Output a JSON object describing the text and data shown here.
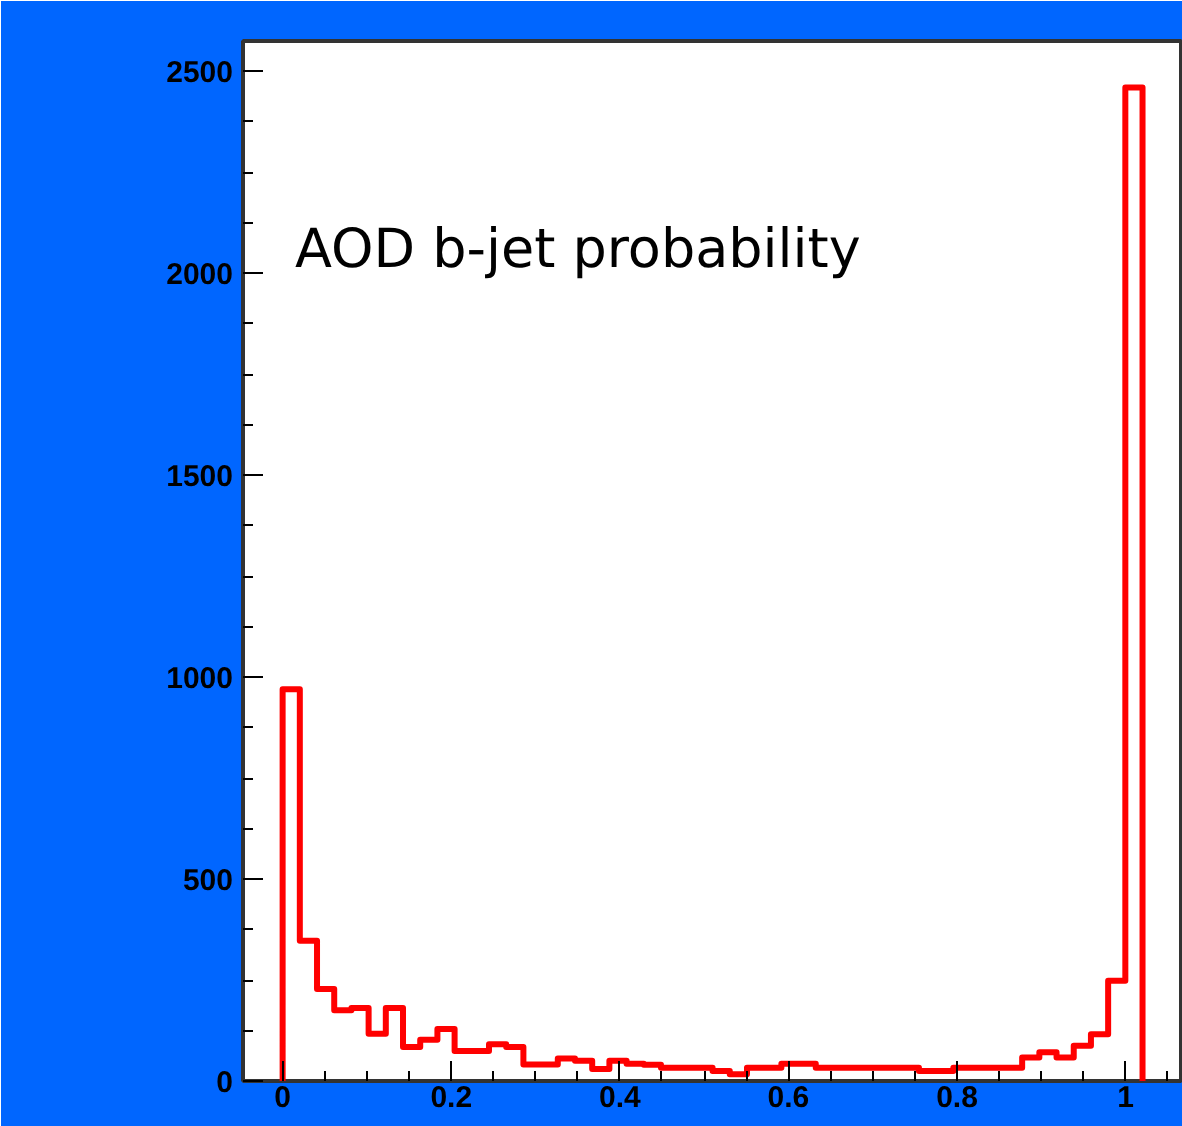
{
  "chart_data": {
    "type": "histogram",
    "title": "AOD b-jet probability",
    "bins": [
      0.0,
      0.0204,
      0.0408,
      0.0612,
      0.0816,
      0.102,
      0.1224,
      0.1428,
      0.1632,
      0.1836,
      0.204,
      0.2244,
      0.2448,
      0.2652,
      0.2856,
      0.306,
      0.3264,
      0.3468,
      0.3672,
      0.3876,
      0.408,
      0.4284,
      0.4488,
      0.4692,
      0.4896,
      0.51,
      0.5304,
      0.5508,
      0.5712,
      0.5916,
      0.612,
      0.6324,
      0.6528,
      0.6732,
      0.6936,
      0.714,
      0.7344,
      0.7548,
      0.7752,
      0.7956,
      0.816,
      0.8364,
      0.8568,
      0.8772,
      0.8976,
      0.918,
      0.9384,
      0.9588,
      0.9792,
      0.9996,
      1.02
    ],
    "values": [
      970,
      347,
      228,
      175,
      181,
      117,
      181,
      84,
      102,
      129,
      74,
      74,
      91,
      84,
      41,
      41,
      56,
      50,
      30,
      50,
      43,
      40,
      33,
      33,
      33,
      25,
      17,
      33,
      33,
      43,
      43,
      33,
      33,
      33,
      33,
      33,
      33,
      25,
      25,
      33,
      33,
      33,
      33,
      58,
      71,
      58,
      87,
      116,
      248,
      2460
    ],
    "color": "#ff0000",
    "xlim": [
      -0.047,
      1.068
    ],
    "ylim": [
      0,
      2575
    ],
    "xticks": [
      0,
      0.2,
      0.4,
      0.6,
      0.8,
      1
    ],
    "yticks": [
      0,
      500,
      1000,
      1500,
      2000,
      2500
    ],
    "grid": false
  }
}
